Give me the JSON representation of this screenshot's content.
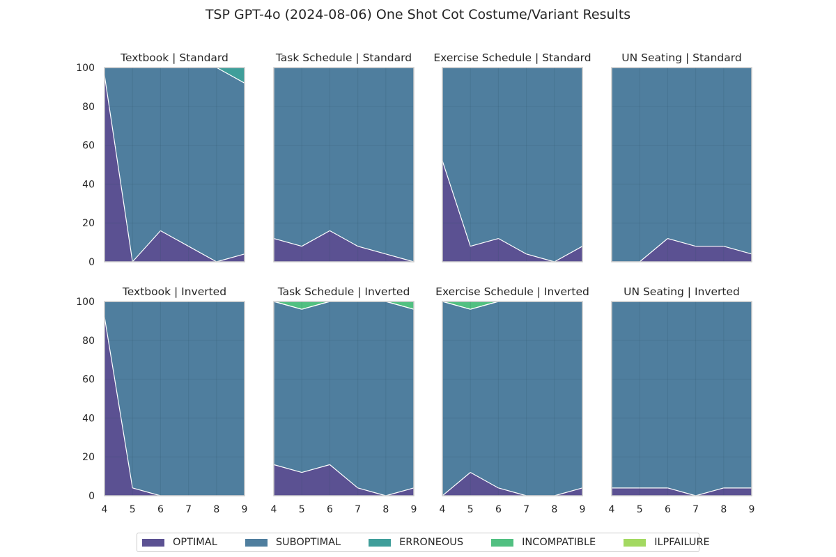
{
  "figure": {
    "title": "TSP GPT-4o (2024-08-06) One Shot Cot Costume/Variant Results"
  },
  "legend": {
    "items": [
      {
        "label": "OPTIMAL",
        "color": "#5b5192"
      },
      {
        "label": "SUBOPTIMAL",
        "color": "#4f7e9e"
      },
      {
        "label": "ERRONEOUS",
        "color": "#3f9e9a"
      },
      {
        "label": "INCOMPATIBLE",
        "color": "#51c081"
      },
      {
        "label": "ILPFAILURE",
        "color": "#a3d961"
      }
    ]
  },
  "chart_data": {
    "type": "area",
    "stacked": true,
    "x": [
      4,
      5,
      6,
      7,
      8,
      9
    ],
    "x_ticks": [
      "4",
      "5",
      "6",
      "7",
      "8",
      "9"
    ],
    "y_ticks": [
      "0",
      "20",
      "40",
      "60",
      "80",
      "100"
    ],
    "ylim": [
      0,
      100
    ],
    "grid": true,
    "legend_placement": "bottom-center",
    "series_names": [
      "OPTIMAL",
      "SUBOPTIMAL",
      "ERRONEOUS",
      "INCOMPATIBLE",
      "ILPFAILURE"
    ],
    "panels": [
      {
        "title": "Textbook | Standard",
        "row": 0,
        "col": 0,
        "series": [
          [
            96,
            0,
            16,
            8,
            0,
            4
          ],
          [
            4,
            100,
            84,
            92,
            100,
            88
          ],
          [
            0,
            0,
            0,
            0,
            0,
            8
          ],
          [
            0,
            0,
            0,
            0,
            0,
            0
          ],
          [
            0,
            0,
            0,
            0,
            0,
            0
          ]
        ]
      },
      {
        "title": "Task Schedule | Standard",
        "row": 0,
        "col": 1,
        "series": [
          [
            12,
            8,
            16,
            8,
            4,
            0
          ],
          [
            88,
            92,
            84,
            92,
            96,
            100
          ],
          [
            0,
            0,
            0,
            0,
            0,
            0
          ],
          [
            0,
            0,
            0,
            0,
            0,
            0
          ],
          [
            0,
            0,
            0,
            0,
            0,
            0
          ]
        ]
      },
      {
        "title": "Exercise Schedule | Standard",
        "row": 0,
        "col": 2,
        "series": [
          [
            52,
            8,
            12,
            4,
            0,
            8
          ],
          [
            48,
            92,
            88,
            96,
            100,
            92
          ],
          [
            0,
            0,
            0,
            0,
            0,
            0
          ],
          [
            0,
            0,
            0,
            0,
            0,
            0
          ],
          [
            0,
            0,
            0,
            0,
            0,
            0
          ]
        ]
      },
      {
        "title": "UN Seating | Standard",
        "row": 0,
        "col": 3,
        "series": [
          [
            0,
            0,
            12,
            8,
            8,
            4
          ],
          [
            100,
            100,
            88,
            92,
            92,
            96
          ],
          [
            0,
            0,
            0,
            0,
            0,
            0
          ],
          [
            0,
            0,
            0,
            0,
            0,
            0
          ],
          [
            0,
            0,
            0,
            0,
            0,
            0
          ]
        ]
      },
      {
        "title": "Textbook | Inverted",
        "row": 1,
        "col": 0,
        "series": [
          [
            92,
            4,
            0,
            0,
            0,
            0
          ],
          [
            8,
            96,
            100,
            100,
            100,
            100
          ],
          [
            0,
            0,
            0,
            0,
            0,
            0
          ],
          [
            0,
            0,
            0,
            0,
            0,
            0
          ],
          [
            0,
            0,
            0,
            0,
            0,
            0
          ]
        ]
      },
      {
        "title": "Task Schedule | Inverted",
        "row": 1,
        "col": 1,
        "series": [
          [
            16,
            12,
            16,
            4,
            0,
            4
          ],
          [
            84,
            84,
            84,
            96,
            100,
            92
          ],
          [
            0,
            0,
            0,
            0,
            0,
            0
          ],
          [
            0,
            4,
            0,
            0,
            0,
            4
          ],
          [
            0,
            0,
            0,
            0,
            0,
            0
          ]
        ]
      },
      {
        "title": "Exercise Schedule | Inverted",
        "row": 1,
        "col": 2,
        "series": [
          [
            0,
            12,
            4,
            0,
            0,
            4
          ],
          [
            100,
            84,
            96,
            100,
            100,
            96
          ],
          [
            0,
            0,
            0,
            0,
            0,
            0
          ],
          [
            0,
            4,
            0,
            0,
            0,
            0
          ],
          [
            0,
            0,
            0,
            0,
            0,
            0
          ]
        ]
      },
      {
        "title": "UN Seating | Inverted",
        "row": 1,
        "col": 3,
        "series": [
          [
            4,
            4,
            4,
            0,
            4,
            4
          ],
          [
            96,
            96,
            96,
            100,
            96,
            96
          ],
          [
            0,
            0,
            0,
            0,
            0,
            0
          ],
          [
            0,
            0,
            0,
            0,
            0,
            0
          ],
          [
            0,
            0,
            0,
            0,
            0,
            0
          ]
        ]
      }
    ]
  }
}
